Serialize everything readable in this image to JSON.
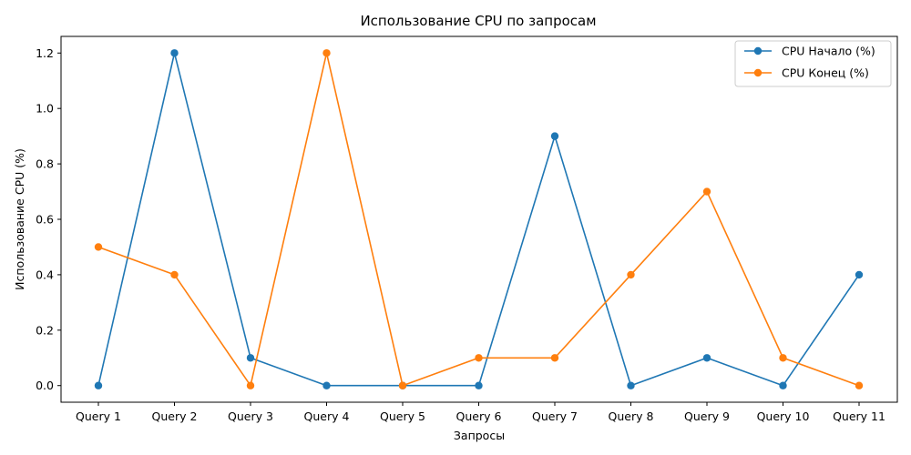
{
  "chart_data": {
    "type": "line",
    "title": "Использование CPU по запросам",
    "xlabel": "Запросы",
    "ylabel": "Использование CPU (%)",
    "categories": [
      "Query 1",
      "Query 2",
      "Query 3",
      "Query 4",
      "Query 5",
      "Query 6",
      "Query 7",
      "Query 8",
      "Query 9",
      "Query 10",
      "Query 11"
    ],
    "ylim": [
      -0.06,
      1.26
    ],
    "yticks": [
      0.0,
      0.2,
      0.4,
      0.6,
      0.8,
      1.0,
      1.2
    ],
    "ytick_labels": [
      "0.0",
      "0.2",
      "0.4",
      "0.6",
      "0.8",
      "1.0",
      "1.2"
    ],
    "grid": false,
    "legend_position": "top-right",
    "series": [
      {
        "name": "CPU Начало (%)",
        "color": "#1f77b4",
        "values": [
          0.0,
          1.2,
          0.1,
          0.0,
          0.0,
          0.0,
          0.9,
          0.0,
          0.1,
          0.0,
          0.4
        ]
      },
      {
        "name": "CPU Конец (%)",
        "color": "#ff7f0e",
        "values": [
          0.5,
          0.4,
          0.0,
          1.2,
          0.0,
          0.1,
          0.1,
          0.4,
          0.7,
          0.1,
          0.0
        ]
      }
    ]
  }
}
